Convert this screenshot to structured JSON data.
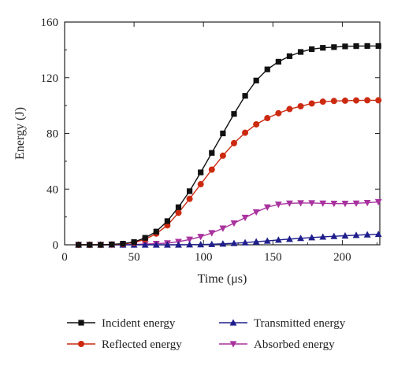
{
  "chart_data": {
    "type": "line",
    "xlabel": "Time (μs)",
    "ylabel": "Energy (J)",
    "xlim": [
      0,
      227
    ],
    "ylim": [
      0,
      160
    ],
    "x_ticks": [
      0,
      50,
      100,
      150,
      200
    ],
    "y_ticks": [
      0,
      40,
      80,
      120,
      160
    ],
    "x_tick_labels": [
      "0",
      "50",
      "100",
      "150",
      "200"
    ],
    "y_tick_labels": [
      "0",
      "40",
      "80",
      "120",
      "160"
    ],
    "grid": false,
    "legend_position": "bottom",
    "series": [
      {
        "name": "Incident energy",
        "color": "#111111",
        "marker": "square",
        "x": [
          10,
          18,
          26,
          34,
          42,
          50,
          58,
          66,
          74,
          82,
          90,
          98,
          106,
          114,
          122,
          130,
          138,
          146,
          154,
          162,
          170,
          178,
          186,
          194,
          202,
          210,
          218,
          226
        ],
        "y": [
          0,
          0,
          0,
          0.3,
          0.8,
          2,
          5,
          9.5,
          17,
          27,
          38.5,
          52,
          66,
          80,
          94,
          107,
          118,
          126,
          131.5,
          135.5,
          138.5,
          140.5,
          141.5,
          142,
          142.5,
          142.7,
          142.8,
          142.8
        ]
      },
      {
        "name": "Reflected energy",
        "color": "#cc2a10",
        "marker": "circle",
        "x": [
          10,
          18,
          26,
          34,
          42,
          50,
          58,
          66,
          74,
          82,
          90,
          98,
          106,
          114,
          122,
          130,
          138,
          146,
          154,
          162,
          170,
          178,
          186,
          194,
          202,
          210,
          218,
          226
        ],
        "y": [
          0,
          0,
          0,
          0.2,
          0.6,
          1.5,
          4,
          8,
          14,
          23,
          33,
          43.5,
          54,
          64,
          73,
          80.5,
          86.5,
          91,
          94.5,
          97.5,
          99.5,
          101.5,
          102.8,
          103.3,
          103.5,
          103.7,
          103.8,
          103.8
        ]
      },
      {
        "name": "Transmitted energy",
        "color": "#1f1e8c",
        "marker": "triangle-up",
        "x": [
          10,
          18,
          26,
          34,
          42,
          50,
          58,
          66,
          74,
          82,
          90,
          98,
          106,
          114,
          122,
          130,
          138,
          146,
          154,
          162,
          170,
          178,
          186,
          194,
          202,
          210,
          218,
          226
        ],
        "y": [
          0,
          0,
          0,
          0,
          0,
          0,
          0,
          0,
          0,
          0,
          0.1,
          0.2,
          0.4,
          0.7,
          1.1,
          1.6,
          2.2,
          2.8,
          3.5,
          4.1,
          4.7,
          5.2,
          5.7,
          6.1,
          6.5,
          6.9,
          7.3,
          7.6
        ]
      },
      {
        "name": "Absorbed energy",
        "color": "#a8329e",
        "marker": "triangle-down",
        "x": [
          10,
          18,
          26,
          34,
          42,
          50,
          58,
          66,
          74,
          82,
          90,
          98,
          106,
          114,
          122,
          130,
          138,
          146,
          154,
          162,
          170,
          178,
          186,
          194,
          202,
          210,
          218,
          226
        ],
        "y": [
          0,
          0,
          0,
          0,
          0,
          0.2,
          0.5,
          0.8,
          1.2,
          2.2,
          3.8,
          5.8,
          8.5,
          11.8,
          15.5,
          19.5,
          23.5,
          27,
          29,
          29.8,
          30,
          30,
          29.8,
          29.6,
          29.6,
          29.8,
          30.2,
          30.8
        ]
      }
    ]
  }
}
